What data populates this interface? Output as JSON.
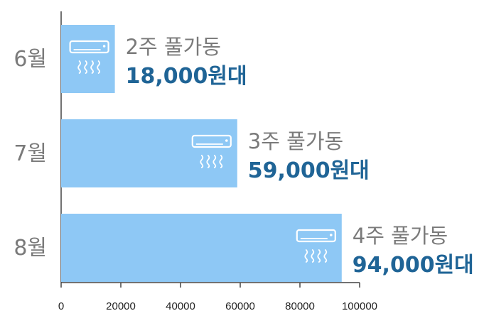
{
  "chart_data": {
    "type": "bar",
    "orientation": "horizontal",
    "categories": [
      "6월",
      "7월",
      "8월"
    ],
    "values": [
      18000,
      59000,
      94000
    ],
    "usage_labels": [
      "2주 풀가동",
      "3주 풀가동",
      "4주 풀가동"
    ],
    "cost_labels": [
      "18,000원대",
      "59,000원대",
      "94,000원대"
    ],
    "xlim": [
      0,
      100000
    ],
    "x_ticks": [
      "0",
      "20000",
      "40000",
      "60000",
      "80000",
      "100000"
    ],
    "grid": false,
    "colors": {
      "bar": "#8ec8f5",
      "icon": "#ffffff",
      "category_text": "#7a7a7a",
      "usage_text": "#7a7a7a",
      "cost_text": "#1f6496",
      "axis": "#444444"
    },
    "bar_icon": "air-conditioner-icon"
  }
}
